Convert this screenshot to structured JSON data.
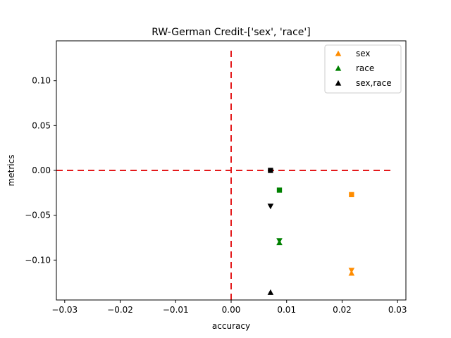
{
  "chart_data": {
    "type": "scatter",
    "title": "RW-German Credit-['sex', 'race']",
    "xlabel": "accuracy",
    "ylabel": "metrics",
    "xlim": [
      -0.0315,
      0.0315
    ],
    "ylim": [
      -0.1445,
      0.1445
    ],
    "xticks": [
      -0.03,
      -0.02,
      -0.01,
      0.0,
      0.01,
      0.02,
      0.03
    ],
    "xtick_labels": [
      "−0.03",
      "−0.02",
      "−0.01",
      "0.00",
      "0.01",
      "0.02",
      "0.03"
    ],
    "yticks": [
      -0.1,
      -0.05,
      0.0,
      0.05,
      0.1
    ],
    "ytick_labels": [
      "−0.10",
      "−0.05",
      "0.00",
      "0.05",
      "0.10"
    ],
    "grid": false,
    "legend_position": "top-right",
    "reference_lines": {
      "x": 0.0,
      "y": 0.0,
      "color": "#e41a1c",
      "style": "dashed"
    },
    "series": [
      {
        "name": "sex",
        "color": "#ff8c00",
        "points": [
          {
            "x": 0.0217,
            "y": -0.027,
            "marker": "square"
          },
          {
            "x": 0.0217,
            "y": -0.1115,
            "marker": "triangle-down"
          },
          {
            "x": 0.0217,
            "y": -0.1145,
            "marker": "triangle-up"
          }
        ]
      },
      {
        "name": "race",
        "color": "#008000",
        "points": [
          {
            "x": 0.0087,
            "y": -0.022,
            "marker": "square"
          },
          {
            "x": 0.0087,
            "y": -0.0785,
            "marker": "triangle-down"
          },
          {
            "x": 0.0087,
            "y": -0.0805,
            "marker": "triangle-up"
          }
        ]
      },
      {
        "name": "sex,race",
        "color": "#000000",
        "points": [
          {
            "x": 0.0071,
            "y": 0.0,
            "marker": "square"
          },
          {
            "x": 0.0071,
            "y": -0.04,
            "marker": "triangle-down"
          },
          {
            "x": 0.0071,
            "y": -0.136,
            "marker": "triangle-up"
          }
        ]
      }
    ]
  }
}
